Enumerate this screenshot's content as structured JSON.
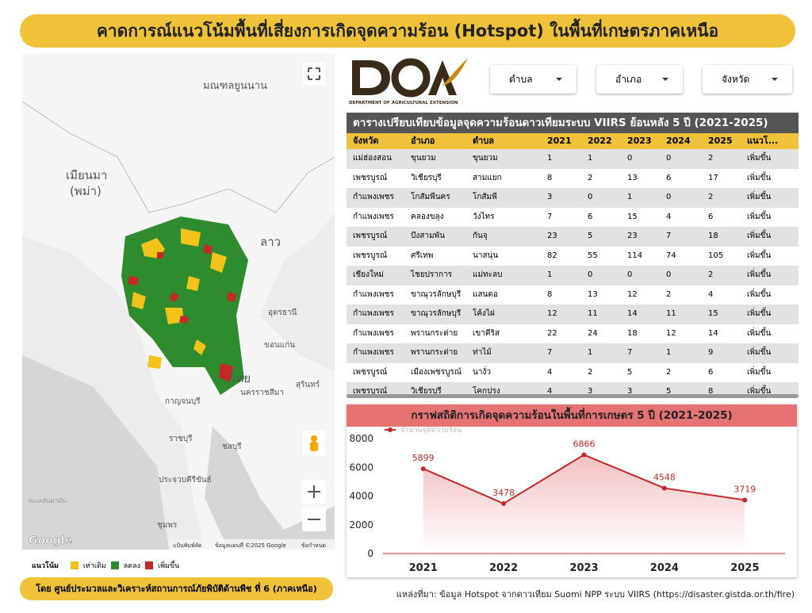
{
  "header": {
    "title": "คาดการณ์แนวโน้มพื้นที่เสี่ยงการเกิดจุดความร้อน (Hotspot) ในพื้นที่เกษตรภาคเหนือ"
  },
  "map": {
    "labels": [
      "มณฑลยูนนาน",
      "เมียนมา",
      "(พม่า)",
      "ลาว",
      "อุดรธานี",
      "ขอนแก่น",
      "ไทย",
      "นครราชสีมา",
      "สุรินทร์",
      "กาญจนบุรี",
      "ราชบุรี",
      "ชลบุรี",
      "ประจวบคีรีขันธ์",
      "ชุมพร",
      "ทะเลอันดามัน"
    ],
    "attribution": [
      "แป้นพิมพ์ลัด",
      "ข้อมูลแผนที่ ©2025 Google",
      "ข้อกำหนด"
    ],
    "logo": "Google"
  },
  "legend": {
    "title": "แนวโน้ม",
    "items": [
      "เท่าเดิม",
      "ลดลง",
      "เพิ่มขึ้น"
    ]
  },
  "credit": "โดย ศูนย์ประมวลและวิเคราะห์สถานการณ์ภัยพิบัติด้านพืช ที่ 6 (ภาคเหนือ)",
  "logo": {
    "text": "DEPARTMENT OF AGRICULTURAL EXTENSION"
  },
  "filters": [
    "ตำบล",
    "อำเภอ",
    "จังหวัด"
  ],
  "table": {
    "title": "ตารางเปรียบเทียบข้อมูลจุดความร้อนดาวเทียมระบบ VIIRS ย้อนหลัง 5 ปี (2021-2025)",
    "columns": [
      "จังหวัด",
      "อำเภอ",
      "ตำบล",
      "2021",
      "2022",
      "2023",
      "2024",
      "2025",
      "แนวโ..."
    ],
    "rows": [
      [
        "แม่ฮ่องสอน",
        "ขุนยวม",
        "ขุนยวม",
        1,
        1,
        0,
        0,
        2,
        "เพิ่มขึ้น"
      ],
      [
        "เพชรบูรณ์",
        "วิเชียรบุรี",
        "สามแยก",
        8,
        2,
        13,
        6,
        17,
        "เพิ่มขึ้น"
      ],
      [
        "กำแพงเพชร",
        "โกสัมพีนคร",
        "โกสัมพี",
        3,
        0,
        1,
        0,
        2,
        "เพิ่มขึ้น"
      ],
      [
        "กำแพงเพชร",
        "คลองขลุง",
        "วังไทร",
        7,
        6,
        15,
        4,
        6,
        "เพิ่มขึ้น"
      ],
      [
        "เพชรบูรณ์",
        "บึงสามพัน",
        "กันจุ",
        23,
        5,
        23,
        7,
        18,
        "เพิ่มขึ้น"
      ],
      [
        "เพชรบูรณ์",
        "ศรีเทพ",
        "นาสนุ่น",
        82,
        55,
        114,
        74,
        105,
        "เพิ่มขึ้น"
      ],
      [
        "เชียงใหม่",
        "ไชยปราการ",
        "แม่ทะลบ",
        1,
        0,
        0,
        0,
        2,
        "เพิ่มขึ้น"
      ],
      [
        "กำแพงเพชร",
        "ขาณุวรลักษบุรี",
        "แสนตอ",
        8,
        13,
        12,
        2,
        4,
        "เพิ่มขึ้น"
      ],
      [
        "กำแพงเพชร",
        "ขาณุวรลักษบุรี",
        "โค้งไผ่",
        12,
        11,
        14,
        11,
        15,
        "เพิ่มขึ้น"
      ],
      [
        "กำแพงเพชร",
        "พรานกระต่าย",
        "เขาคีริส",
        22,
        24,
        18,
        12,
        14,
        "เพิ่มขึ้น"
      ],
      [
        "กำแพงเพชร",
        "พรานกระต่าย",
        "ท่าไม้",
        7,
        1,
        7,
        1,
        9,
        "เพิ่มขึ้น"
      ],
      [
        "เพชรบูรณ์",
        "เมืองเพชรบูรณ์",
        "นางั่ว",
        4,
        2,
        5,
        2,
        6,
        "เพิ่มขึ้น"
      ],
      [
        "เพชรบูรณ์",
        "วิเชียรบุรี",
        "โคกปรง",
        4,
        3,
        3,
        5,
        8,
        "เพิ่มขึ้น"
      ]
    ]
  },
  "chart_data": {
    "type": "line",
    "title": "กราฟสถิติการเกิดจุดความร้อนในพื้นที่การเกษตร 5 ปี (2021-2025)",
    "categories": [
      "2021",
      "2022",
      "2023",
      "2024",
      "2025"
    ],
    "series": [
      {
        "name": "จำนวนจุดความร้อน",
        "color": "#c62828",
        "values": [
          5899,
          3478,
          6866,
          4548,
          3719
        ]
      }
    ],
    "ylim": [
      0,
      8000
    ],
    "yticks": [
      0,
      2000,
      4000,
      6000,
      8000
    ],
    "area": true
  },
  "source": "แหล่งที่มา: ข้อมูล Hotspot จากดาวเทียม Suomi NPP ระบบ VIIRS (https://disaster.gistda.or.th/fire)"
}
